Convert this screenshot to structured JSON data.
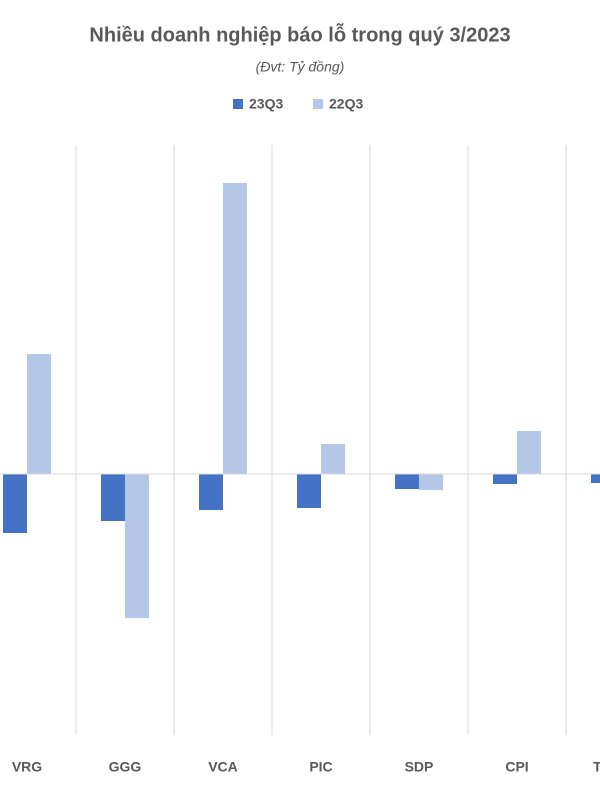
{
  "chart_data": {
    "type": "bar",
    "title": "Nhiều doanh nghiệp báo lỗ trong quý  3/2023",
    "subtitle": "(Đvt: Tỷ đồng)",
    "categories": [
      "VRG",
      "GGG",
      "VCA",
      "PIC",
      "SDP",
      "CPI",
      "T"
    ],
    "series": [
      {
        "name": "23Q3",
        "color": "#4472c4",
        "values": [
          -59,
          -47,
          -36,
          -34,
          -15,
          -10,
          -9
        ]
      },
      {
        "name": "22Q3",
        "color": "#b4c7e7",
        "values": [
          120,
          -144,
          291,
          30,
          -16,
          43,
          null
        ]
      }
    ],
    "ylim": [
      -261,
      334
    ]
  }
}
